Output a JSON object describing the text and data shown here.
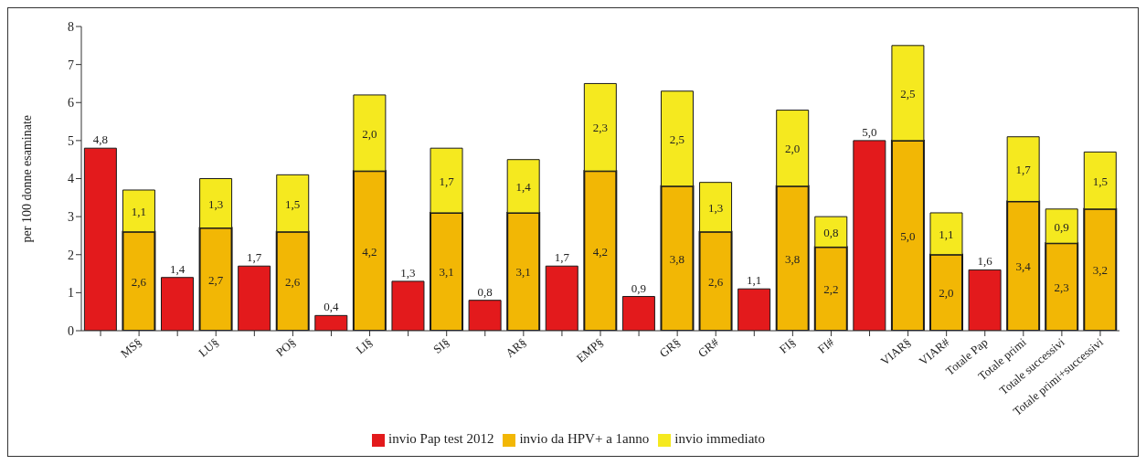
{
  "chart_data": {
    "type": "bar",
    "stacked": true,
    "ylabel": "per 100 donne esaminate",
    "ylim": [
      0,
      8
    ],
    "yticks": [
      0,
      1,
      2,
      3,
      4,
      5,
      6,
      7,
      8
    ],
    "legend": "bottom",
    "categories": [
      null,
      "MS§",
      null,
      "LU§",
      null,
      "PO§",
      null,
      "LI§",
      null,
      "SI§",
      null,
      "AR§",
      null,
      "EMP§",
      null,
      "GR§",
      "GR#",
      null,
      "FI§",
      "FI#",
      null,
      "VIAR§",
      "VIAR#",
      "Totale Pap",
      "Totale primi",
      "Totale successivi",
      "Totale primi+successivi"
    ],
    "series": [
      {
        "name": "invio Pap test 2012",
        "color": "#e31a1c",
        "values": [
          4.8,
          null,
          1.4,
          null,
          1.7,
          null,
          0.4,
          null,
          1.3,
          null,
          0.8,
          null,
          1.7,
          null,
          0.9,
          null,
          null,
          1.1,
          null,
          null,
          5.0,
          null,
          null,
          1.6,
          null,
          null,
          null
        ],
        "value_labels": [
          "4,8",
          null,
          "1,4",
          null,
          "1,7",
          null,
          "0,4",
          null,
          "1,3",
          null,
          "0,8",
          null,
          "1,7",
          null,
          "0,9",
          null,
          null,
          "1,1",
          null,
          null,
          "5,0",
          null,
          null,
          "1,6",
          null,
          null,
          null
        ]
      },
      {
        "name": "invio da HPV+ a 1anno",
        "color": "#f2b705",
        "values": [
          null,
          2.6,
          null,
          2.7,
          null,
          2.6,
          null,
          4.2,
          null,
          3.1,
          null,
          3.1,
          null,
          4.2,
          null,
          3.8,
          2.6,
          null,
          3.8,
          2.2,
          null,
          5.0,
          2.0,
          null,
          3.4,
          2.3,
          3.2
        ],
        "value_labels": [
          null,
          "2,6",
          null,
          "2,7",
          null,
          "2,6",
          null,
          "4,2",
          null,
          "3,1",
          null,
          "3,1",
          null,
          "4,2",
          null,
          "3,8",
          "2,6",
          null,
          "3,8",
          "2,2",
          null,
          "5,0",
          "2,0",
          null,
          "3,4",
          "2,3",
          "3,2"
        ]
      },
      {
        "name": "invio immediato",
        "color": "#f5e91f",
        "values": [
          null,
          1.1,
          null,
          1.3,
          null,
          1.5,
          null,
          2.0,
          null,
          1.7,
          null,
          1.4,
          null,
          2.3,
          null,
          2.5,
          1.3,
          null,
          2.0,
          0.8,
          null,
          2.5,
          1.1,
          null,
          1.7,
          0.9,
          1.5
        ],
        "value_labels": [
          null,
          "1,1",
          null,
          "1,3",
          null,
          "1,5",
          null,
          "2,0",
          null,
          "1,7",
          null,
          "1,4",
          null,
          "2,3",
          null,
          "2,5",
          "1,3",
          null,
          "2,0",
          "0,8",
          null,
          "2,5",
          "1,1",
          null,
          "1,7",
          "0,9",
          "1,5"
        ]
      }
    ]
  }
}
